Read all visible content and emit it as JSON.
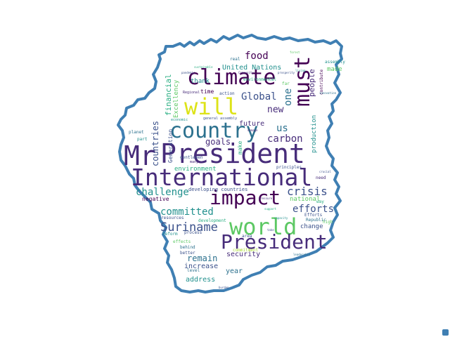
{
  "colors": {
    "outline": "#3f7fb3",
    "palette": [
      "#440154",
      "#472c7a",
      "#3b518b",
      "#2c718e",
      "#21908d",
      "#27ad81",
      "#5cc863",
      "#aadc32",
      "#dde318"
    ]
  },
  "words": [
    {
      "text": "President",
      "c": 1
    },
    {
      "text": "International",
      "c": 1
    },
    {
      "text": "country",
      "c": 3
    },
    {
      "text": "world",
      "c": 6
    },
    {
      "text": "President",
      "c": 1
    },
    {
      "text": "climate",
      "c": 0
    },
    {
      "text": "impact",
      "c": 0
    },
    {
      "text": "will",
      "c": 8
    },
    {
      "text": "Mr",
      "c": 1
    },
    {
      "text": "must",
      "c": 0
    },
    {
      "text": "Suriname",
      "c": 2
    },
    {
      "text": "crisis",
      "c": 2
    },
    {
      "text": "challenge",
      "c": 4
    },
    {
      "text": "committed",
      "c": 4
    },
    {
      "text": "efforts",
      "c": 2
    },
    {
      "text": "carbon",
      "c": 1
    },
    {
      "text": "food",
      "c": 0
    },
    {
      "text": "Global",
      "c": 2
    },
    {
      "text": "new",
      "c": 1
    },
    {
      "text": "us",
      "c": 3
    },
    {
      "text": "remain",
      "c": 3
    },
    {
      "text": "goals",
      "c": 1
    },
    {
      "text": "countries",
      "c": 2
    },
    {
      "text": "financial",
      "c": 5
    },
    {
      "text": "one",
      "c": 3
    },
    {
      "text": "people",
      "c": 1
    },
    {
      "text": "United Nations",
      "c": 4
    },
    {
      "text": "future",
      "c": 1
    },
    {
      "text": "security",
      "c": 1
    },
    {
      "text": "increase",
      "c": 2
    },
    {
      "text": "address",
      "c": 4
    },
    {
      "text": "year",
      "c": 3
    },
    {
      "text": "national",
      "c": 6
    },
    {
      "text": "change",
      "c": 2
    },
    {
      "text": "production",
      "c": 4
    },
    {
      "text": "environment",
      "c": 5
    },
    {
      "text": "Excellency",
      "c": 6
    },
    {
      "text": "thank",
      "c": 4
    },
    {
      "text": "time",
      "c": 0
    },
    {
      "text": "made",
      "c": 6
    },
    {
      "text": "negative",
      "c": 0
    },
    {
      "text": "Generation",
      "c": 2
    },
    {
      "text": "make",
      "c": 5
    },
    {
      "text": "developing countries",
      "c": 2
    },
    {
      "text": "resources",
      "c": 2
    },
    {
      "text": "process",
      "c": 2
    },
    {
      "text": "effects",
      "c": 6
    },
    {
      "text": "behind",
      "c": 3
    },
    {
      "text": "reform",
      "c": 4
    },
    {
      "text": "level",
      "c": 3
    },
    {
      "text": "better",
      "c": 2
    },
    {
      "text": "gentlemen",
      "c": 2
    },
    {
      "text": "many",
      "c": 1
    },
    {
      "text": "principles",
      "c": 2
    },
    {
      "text": "real",
      "c": 3
    },
    {
      "text": "far",
      "c": 6
    },
    {
      "text": "Efforts",
      "c": 2
    },
    {
      "text": "Republic",
      "c": 3
    },
    {
      "text": "way",
      "c": 5
    },
    {
      "text": "need",
      "c": 1
    },
    {
      "text": "contribute",
      "c": 0
    },
    {
      "text": "assembly",
      "c": 4
    },
    {
      "text": "environmental",
      "c": 5
    },
    {
      "text": "action",
      "c": 2
    },
    {
      "text": "part",
      "c": 4
    },
    {
      "text": "planet",
      "c": 3
    },
    {
      "text": "development",
      "c": 5
    },
    {
      "text": "commitment",
      "c": 7
    },
    {
      "text": "area",
      "c": 2
    },
    {
      "text": "high",
      "c": 6
    },
    {
      "text": "general assembly",
      "c": 2
    },
    {
      "text": "economic",
      "c": 4
    },
    {
      "text": "Regional",
      "c": 1
    },
    {
      "text": "pandemic",
      "c": 2
    },
    {
      "text": "sustainable",
      "c": 5
    },
    {
      "text": "forest",
      "c": 6
    },
    {
      "text": "prosperity",
      "c": 2
    },
    {
      "text": "living",
      "c": 4
    },
    {
      "text": "innovation",
      "c": 3
    },
    {
      "text": "crucial",
      "c": 2
    },
    {
      "text": "burden",
      "c": 2
    },
    {
      "text": "pressure",
      "c": 1
    },
    {
      "text": "support",
      "c": 5
    },
    {
      "text": "leadership",
      "c": 3
    },
    {
      "text": "damage",
      "c": 1
    },
    {
      "text": "take",
      "c": 2
    },
    {
      "text": "capacity",
      "c": 4
    },
    {
      "text": "Community",
      "c": 1
    }
  ]
}
